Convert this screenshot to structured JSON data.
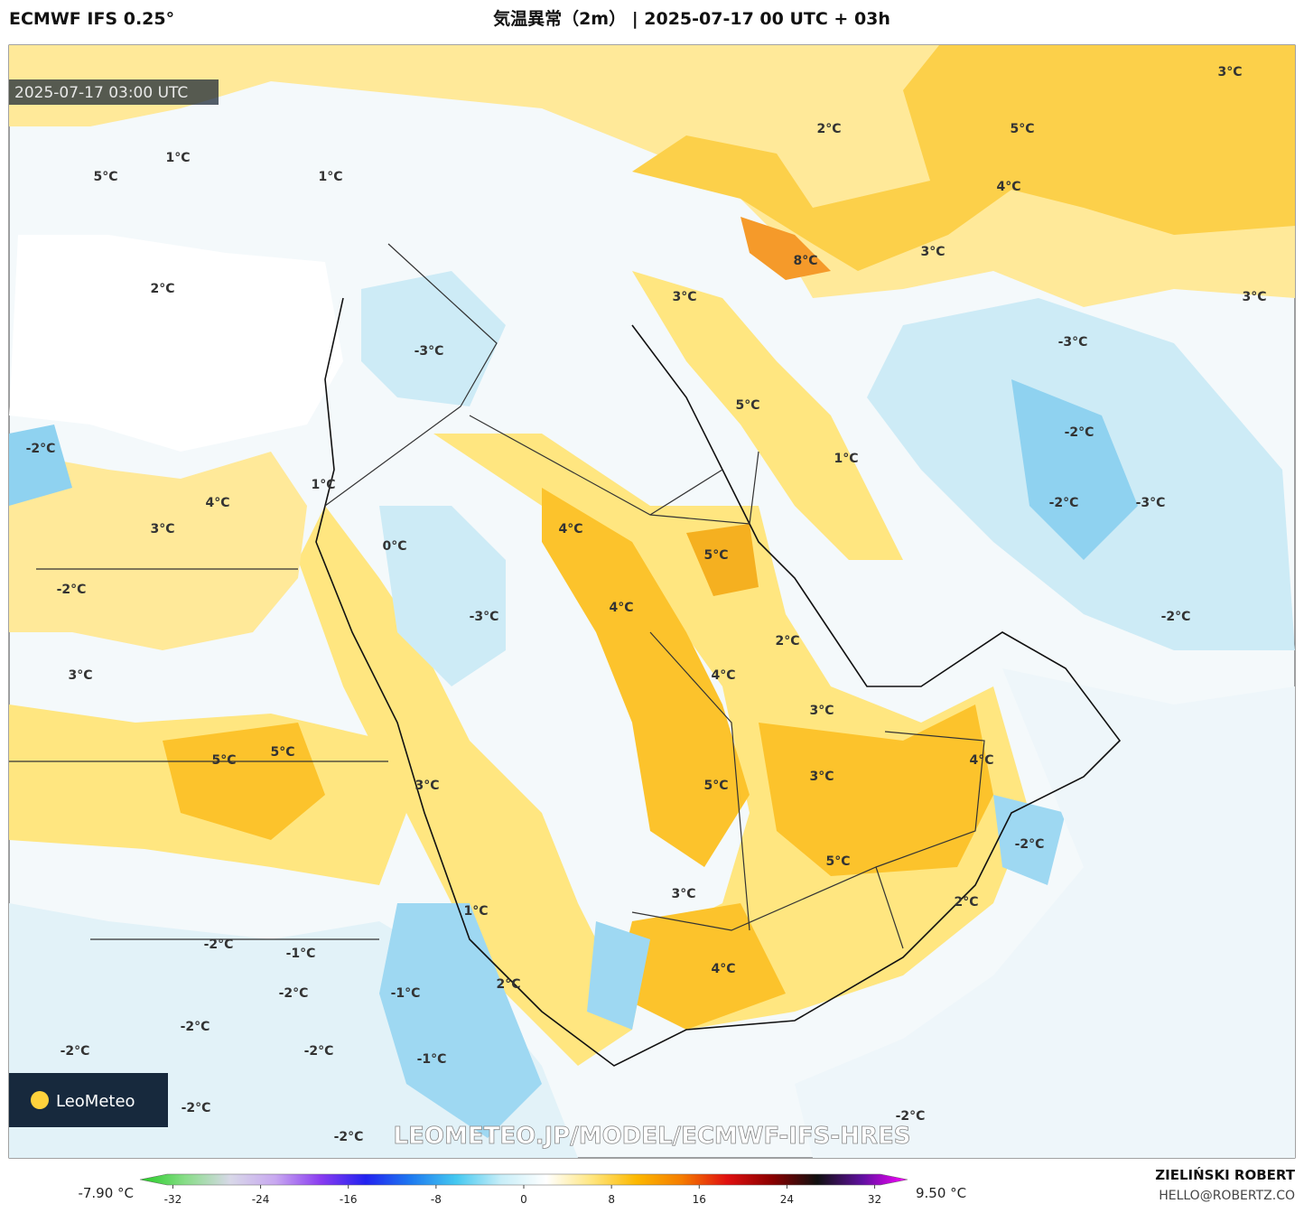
{
  "header": {
    "model": "ECMWF IFS 0.25°",
    "title": "気温異常（2m） | 2025-07-17 00 UTC + 03h"
  },
  "map": {
    "valid_time": "2025-07-17 03:00 UTC",
    "url": "LEOMETEO.JP/MODEL/ECMWF-IFS-HRES",
    "logo": "LeoMeteo",
    "contour_labels": [
      "1°C",
      "5°C",
      "1°C",
      "2°C",
      "2°C",
      "5°C",
      "3°C",
      "4°C",
      "8°C",
      "3°C",
      "3°C",
      "3°C",
      "-3°C",
      "-3°C",
      "5°C",
      "-2°C",
      "-2°C",
      "1°C",
      "1°C",
      "4°C",
      "-2°C",
      "-3°C",
      "3°C",
      "4°C",
      "0°C",
      "5°C",
      "-2°C",
      "4°C",
      "-3°C",
      "-2°C",
      "2°C",
      "3°C",
      "4°C",
      "3°C",
      "5°C",
      "5°C",
      "4°C",
      "3°C",
      "3°C",
      "5°C",
      "-2°C",
      "5°C",
      "3°C",
      "2°C",
      "1°C",
      "-2°C",
      "-1°C",
      "4°C",
      "2°C",
      "-2°C",
      "-1°C",
      "-2°C",
      "-2°C",
      "-1°C",
      "-2°C",
      "-2°C",
      "-2°C",
      "-2°C"
    ]
  },
  "colorbar": {
    "min_label": "-7.90 °C",
    "max_label": "9.50 °C",
    "lim": [
      -35,
      35
    ],
    "ticks": [
      -32,
      -24,
      -16,
      -8,
      0,
      8,
      16,
      24,
      32
    ],
    "colors": [
      "#22cc22",
      "#88dd88",
      "#d8d8e8",
      "#c8a8f0",
      "#8a3cf0",
      "#2222f0",
      "#1e7af0",
      "#44c8f0",
      "#c8eef8",
      "#ffffff",
      "#ffe680",
      "#fcb800",
      "#f57c00",
      "#e01010",
      "#8a0000",
      "#101010",
      "#6010a0",
      "#ff00ff"
    ]
  },
  "credit": {
    "author": "ZIELIŃSKI ROBERT",
    "email": "HELLO@ROBERTZ.CO"
  }
}
